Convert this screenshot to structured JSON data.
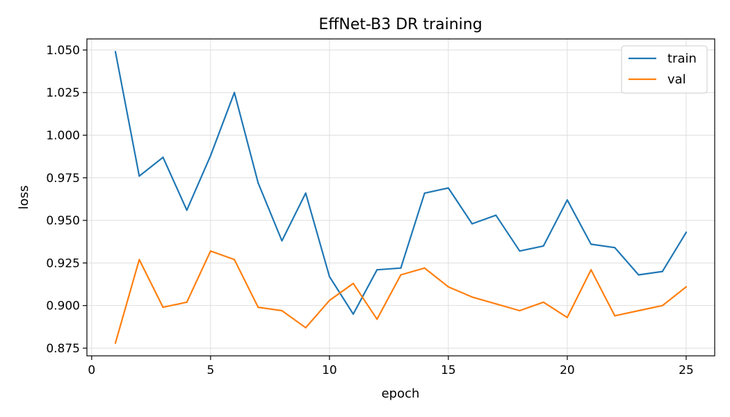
{
  "chart_data": {
    "type": "line",
    "title": "EffNet-B3 DR training",
    "xlabel": "epoch",
    "ylabel": "loss",
    "xlim": [
      -0.2,
      26.2
    ],
    "ylim": [
      0.8705,
      1.0565
    ],
    "x_ticks": [
      0,
      5,
      10,
      15,
      20,
      25
    ],
    "y_ticks": [
      0.875,
      0.9,
      0.925,
      0.95,
      0.975,
      1.0,
      1.025,
      1.05
    ],
    "y_tick_labels": [
      "0.875",
      "0.900",
      "0.925",
      "0.950",
      "0.975",
      "1.000",
      "1.025",
      "1.050"
    ],
    "grid": true,
    "legend_position": "top-right",
    "x": [
      1,
      2,
      3,
      4,
      5,
      6,
      7,
      8,
      9,
      10,
      11,
      12,
      13,
      14,
      15,
      16,
      17,
      18,
      19,
      20,
      21,
      22,
      23,
      24,
      25
    ],
    "series": [
      {
        "name": "train",
        "color": "#1f77b4",
        "values": [
          1.049,
          0.976,
          0.987,
          0.956,
          0.988,
          1.025,
          0.972,
          0.938,
          0.966,
          0.917,
          0.895,
          0.921,
          0.922,
          0.966,
          0.969,
          0.948,
          0.953,
          0.932,
          0.935,
          0.962,
          0.936,
          0.934,
          0.918,
          0.92,
          0.943
        ]
      },
      {
        "name": "val",
        "color": "#ff7f0e",
        "values": [
          0.878,
          0.927,
          0.899,
          0.902,
          0.932,
          0.927,
          0.899,
          0.897,
          0.887,
          0.903,
          0.913,
          0.892,
          0.918,
          0.922,
          0.911,
          0.905,
          0.901,
          0.897,
          0.902,
          0.893,
          0.921,
          0.894,
          0.897,
          0.9,
          0.911
        ]
      }
    ]
  }
}
